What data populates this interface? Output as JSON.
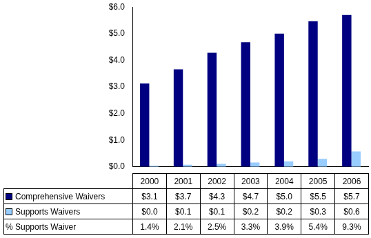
{
  "chart_data": {
    "type": "bar",
    "categories": [
      "2000",
      "2001",
      "2002",
      "2003",
      "2004",
      "2005",
      "2006"
    ],
    "series": [
      {
        "name": "Comprehensive Waivers",
        "color": "#000080",
        "values": [
          3.13,
          3.66,
          4.28,
          4.68,
          5.0,
          5.47,
          5.7
        ],
        "value_labels": [
          "$3.1",
          "$3.7",
          "$4.3",
          "$4.7",
          "$5.0",
          "$5.5",
          "$5.7"
        ]
      },
      {
        "name": "Supports Waivers",
        "color": "#99ccff",
        "values": [
          0.04,
          0.08,
          0.11,
          0.16,
          0.2,
          0.3,
          0.58
        ],
        "value_labels": [
          "$0.0",
          "$0.1",
          "$0.1",
          "$0.2",
          "$0.2",
          "$0.3",
          "$0.6"
        ]
      }
    ],
    "table_rows": [
      {
        "name": "% Supports Waiver",
        "values": [
          1.4,
          2.1,
          2.5,
          3.3,
          3.9,
          5.4,
          9.3
        ],
        "value_labels": [
          "1.4%",
          "2.1%",
          "2.5%",
          "3.3%",
          "3.9%",
          "5.4%",
          "9.3%"
        ]
      }
    ],
    "ylim": [
      0,
      6
    ],
    "yticks": [
      {
        "value": 0,
        "label": "$0.0"
      },
      {
        "value": 1,
        "label": "$1.0"
      },
      {
        "value": 2,
        "label": "$2.0"
      },
      {
        "value": 3,
        "label": "$3.0"
      },
      {
        "value": 4,
        "label": "$4.0"
      },
      {
        "value": 5,
        "label": "$5.0"
      },
      {
        "value": 6,
        "label": "$6.0"
      }
    ],
    "grid": false
  }
}
